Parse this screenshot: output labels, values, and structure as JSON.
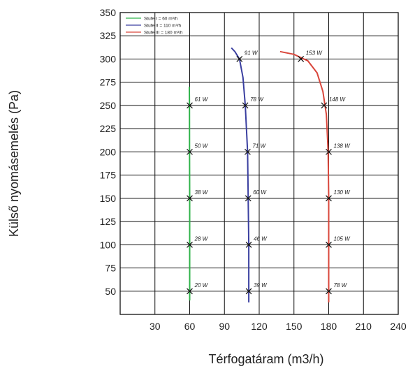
{
  "chart_data": {
    "type": "line",
    "title": "",
    "xlabel": "Térfogatáram (m3/h)",
    "ylabel": "Külső nyomásemelés (Pa)",
    "xlim": [
      0,
      240
    ],
    "ylim": [
      25,
      350
    ],
    "xticks": [
      30,
      60,
      90,
      120,
      150,
      180,
      210,
      240
    ],
    "yticks": [
      50,
      75,
      100,
      125,
      150,
      175,
      200,
      225,
      250,
      275,
      300,
      325,
      350
    ],
    "grid": true,
    "legend_position": "top-left",
    "series": [
      {
        "name": "Stufe I  = 60 m³/h",
        "color": "#2fb34a",
        "curve": [
          [
            60.0,
            40
          ],
          [
            60.0,
            100
          ],
          [
            60.0,
            150
          ],
          [
            59.9,
            200
          ],
          [
            59.8,
            250
          ],
          [
            59.7,
            270
          ]
        ],
        "markers": [
          {
            "x": 60,
            "y": 50,
            "label": "20 W"
          },
          {
            "x": 60,
            "y": 100,
            "label": "28 W"
          },
          {
            "x": 60,
            "y": 150,
            "label": "38 W"
          },
          {
            "x": 60,
            "y": 200,
            "label": "50 W"
          },
          {
            "x": 60,
            "y": 250,
            "label": "61 W"
          }
        ]
      },
      {
        "name": "Stufe II = 110 m³/h",
        "color": "#3a3fa0",
        "curve": [
          [
            111,
            38
          ],
          [
            111,
            100
          ],
          [
            110,
            200
          ],
          [
            108,
            250
          ],
          [
            106,
            280
          ],
          [
            103,
            300
          ],
          [
            99,
            308
          ],
          [
            96,
            312
          ]
        ],
        "markers": [
          {
            "x": 111,
            "y": 50,
            "label": "39 W"
          },
          {
            "x": 111,
            "y": 100,
            "label": "46 W"
          },
          {
            "x": 110.5,
            "y": 150,
            "label": "60 W"
          },
          {
            "x": 110,
            "y": 200,
            "label": "71 W"
          },
          {
            "x": 108,
            "y": 250,
            "label": "78 W"
          },
          {
            "x": 103,
            "y": 300,
            "label": "91 W"
          }
        ]
      },
      {
        "name": "Stufe III = 180 m³/h",
        "color": "#d9463b",
        "curve": [
          [
            180,
            38
          ],
          [
            180,
            150
          ],
          [
            179.5,
            200
          ],
          [
            178,
            240
          ],
          [
            175,
            265
          ],
          [
            170,
            285
          ],
          [
            162,
            298
          ],
          [
            150,
            305
          ],
          [
            138,
            308
          ]
        ],
        "markers": [
          {
            "x": 180,
            "y": 50,
            "label": "78 W"
          },
          {
            "x": 180,
            "y": 100,
            "label": "105 W"
          },
          {
            "x": 180,
            "y": 150,
            "label": "130 W"
          },
          {
            "x": 180,
            "y": 200,
            "label": "138 W"
          },
          {
            "x": 176,
            "y": 250,
            "label": "148 W"
          },
          {
            "x": 156,
            "y": 300,
            "label": "153 W"
          }
        ]
      }
    ]
  }
}
